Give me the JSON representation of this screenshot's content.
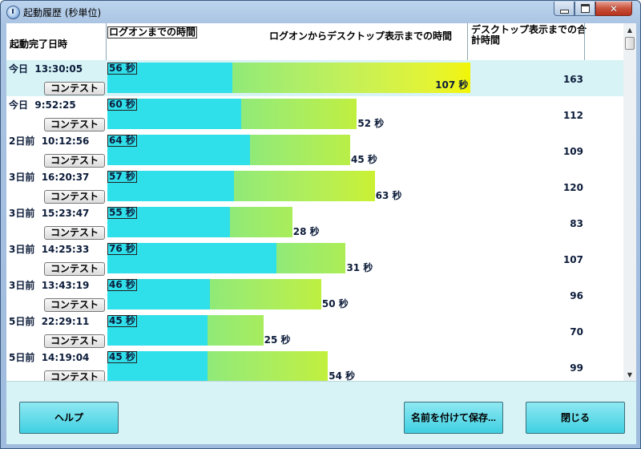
{
  "window": {
    "title": "起動履歴 (秒単位)"
  },
  "columns": {
    "completed": "起動完了日時",
    "logon": "ログオンまでの時間",
    "desktop": "ログオンからデスクトップ表示までの時間",
    "total": "デスクトップ表示までの合計時間"
  },
  "rows": [
    {
      "date": "今日  13:30:05",
      "logon_label": "56 秒",
      "desktop_label": "107 秒",
      "total": "163",
      "contest": "コンテスト",
      "logon_sec": 56,
      "desktop_sec": 107
    },
    {
      "date": "今日  9:52:25",
      "logon_label": "60 秒",
      "desktop_label": "52 秒",
      "total": "112",
      "contest": "コンテスト",
      "logon_sec": 60,
      "desktop_sec": 52
    },
    {
      "date": "2日前  10:12:56",
      "logon_label": "64 秒",
      "desktop_label": "45 秒",
      "total": "109",
      "contest": "コンテスト",
      "logon_sec": 64,
      "desktop_sec": 45
    },
    {
      "date": "3日前  16:20:37",
      "logon_label": "57 秒",
      "desktop_label": "63 秒",
      "total": "120",
      "contest": "コンテスト",
      "logon_sec": 57,
      "desktop_sec": 63
    },
    {
      "date": "3日前  15:23:47",
      "logon_label": "55 秒",
      "desktop_label": "28 秒",
      "total": "83",
      "contest": "コンテスト",
      "logon_sec": 55,
      "desktop_sec": 28
    },
    {
      "date": "3日前  14:25:33",
      "logon_label": "76 秒",
      "desktop_label": "31 秒",
      "total": "107",
      "contest": "コンテスト",
      "logon_sec": 76,
      "desktop_sec": 31
    },
    {
      "date": "3日前  13:43:19",
      "logon_label": "46 秒",
      "desktop_label": "50 秒",
      "total": "96",
      "contest": "コンテスト",
      "logon_sec": 46,
      "desktop_sec": 50
    },
    {
      "date": "5日前  22:29:11",
      "logon_label": "45 秒",
      "desktop_label": "25 秒",
      "total": "70",
      "contest": "コンテスト",
      "logon_sec": 45,
      "desktop_sec": 25
    },
    {
      "date": "5日前  14:19:04",
      "logon_label": "45 秒",
      "desktop_label": "54 秒",
      "total": "99",
      "contest": "コンテスト",
      "logon_sec": 45,
      "desktop_sec": 54
    }
  ],
  "buttons": {
    "help": "ヘルプ",
    "save": "名前を付けて保存...",
    "close": "閉じる"
  },
  "colors": {
    "logon_bar": "#2fdfe9",
    "desktop_bar_start": "#90ea78",
    "desktop_bar_end": "#f2f500",
    "selected_row": "#d7f3f6"
  }
}
